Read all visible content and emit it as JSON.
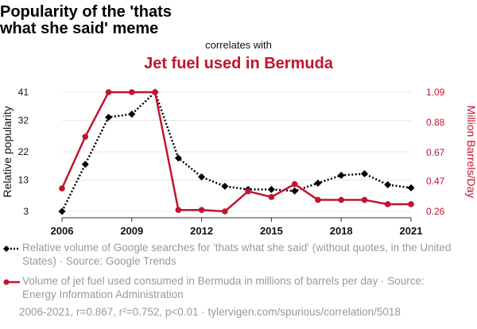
{
  "title": {
    "line1": "Popularity of the 'thats",
    "line2": "what she said' meme",
    "subtitle": "correlates with",
    "line3": "Jet fuel used in Bermuda"
  },
  "colors": {
    "left_series": "#000000",
    "right_series": "#c0152f",
    "grid": "#e8e8e8",
    "legend_text": "#999999"
  },
  "chart_data": {
    "type": "line",
    "x": [
      2006,
      2007,
      2008,
      2009,
      2010,
      2011,
      2012,
      2013,
      2014,
      2015,
      2016,
      2017,
      2018,
      2019,
      2020,
      2021
    ],
    "x_ticks": [
      "2006",
      "2009",
      "2012",
      "2015",
      "2018",
      "2021"
    ],
    "left_axis": {
      "label": "Relative popularity",
      "ylim": [
        3,
        41
      ],
      "ticks": [
        "3",
        "13",
        "22",
        "32",
        "41"
      ]
    },
    "right_axis": {
      "label": "Million Barrels/Day",
      "ylim": [
        0.26,
        1.09
      ],
      "ticks": [
        "0.26",
        "0.47",
        "0.67",
        "0.88",
        "1.09"
      ]
    },
    "series": [
      {
        "name": "Relative volume of Google searches for 'thats what she said' (without quotes, in the United States) · Source: Google Trends",
        "axis": "left",
        "style": "dotted",
        "marker": "diamond",
        "values": [
          3,
          18,
          33,
          34,
          41,
          20,
          14,
          11,
          10,
          10,
          9.5,
          12,
          14.5,
          15,
          11.5,
          10.5
        ]
      },
      {
        "name": "Volume of jet fuel used consumed in Bermuda in millions of barrels per day · Source: Energy Information Administration",
        "axis": "right",
        "style": "solid",
        "marker": "circle",
        "values": [
          0.42,
          0.78,
          1.09,
          1.09,
          1.09,
          0.27,
          0.27,
          0.26,
          0.4,
          0.36,
          0.45,
          0.34,
          0.34,
          0.34,
          0.31,
          0.31
        ]
      }
    ]
  },
  "legend": {
    "item1": "Relative volume of Google searches for 'thats what she said' (without quotes, in the United States) · Source: Google Trends",
    "item2": "Volume of jet fuel used consumed in Bermuda in millions of barrels per day · Source: Energy Information Administration"
  },
  "footer": "2006-2021, r=0.867, r²=0.752, p<0.01 · tylervigen.com/spurious/correlation/5018"
}
